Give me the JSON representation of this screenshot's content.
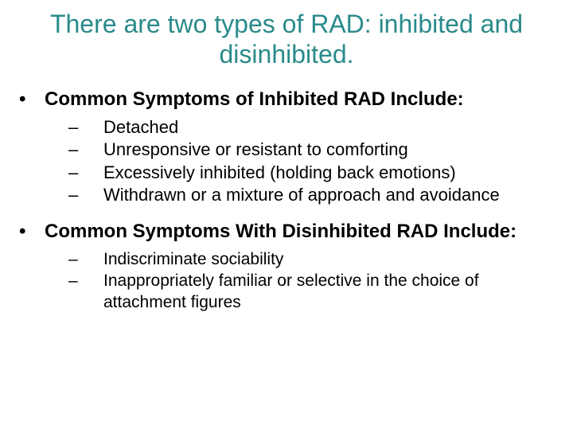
{
  "title_color": "#2a8a8a",
  "text_color": "#000000",
  "background_color": "#ffffff",
  "title": "There are two types of RAD: inhibited and disinhibited.",
  "sections": [
    {
      "heading": "Common Symptoms of Inhibited RAD Include:",
      "items": [
        "Detached",
        "Unresponsive or resistant to comforting",
        "Excessively inhibited (holding back emotions)",
        "Withdrawn or a mixture of approach and avoidance"
      ]
    },
    {
      "heading": "Common Symptoms With Disinhibited RAD Include:",
      "items": [
        "Indiscriminate sociability",
        "Inappropriately familiar or selective in the choice of attachment figures"
      ]
    }
  ],
  "typography": {
    "title_fontsize": 32,
    "title_fontweight": 400,
    "heading_fontsize": 24,
    "heading_fontweight": 700,
    "item_fontsize": 22,
    "font_family": "Arial"
  }
}
